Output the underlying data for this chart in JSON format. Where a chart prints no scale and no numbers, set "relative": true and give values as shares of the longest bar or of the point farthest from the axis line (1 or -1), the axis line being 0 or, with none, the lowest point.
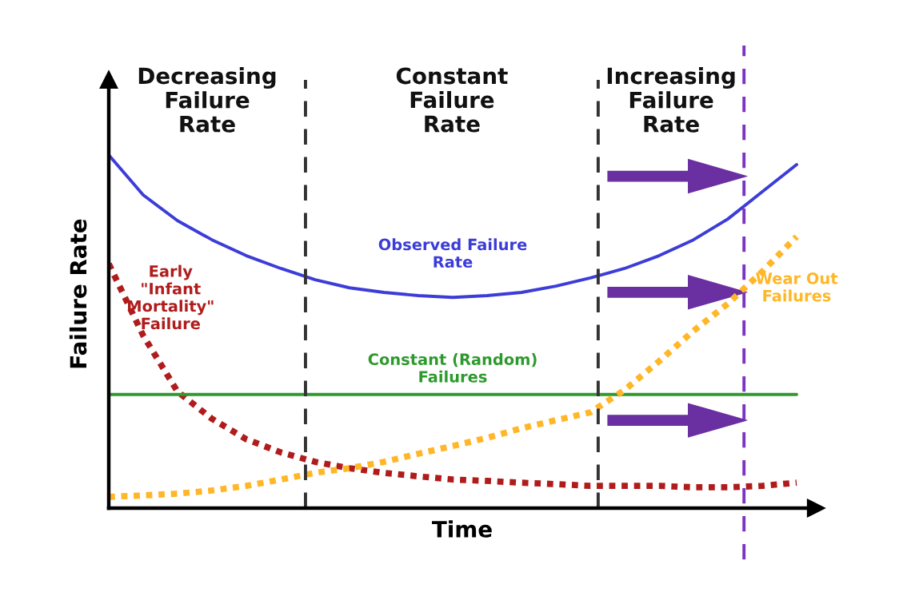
{
  "chart_data": {
    "type": "line",
    "relative": true,
    "xlabel": "Time",
    "ylabel": "Failure Rate",
    "categories": [
      null,
      null,
      null,
      null,
      null,
      null,
      null,
      null,
      null,
      null,
      null,
      null,
      null,
      null,
      null,
      null,
      null,
      null,
      null,
      null,
      null
    ],
    "series": [
      {
        "name": "Observed Failure\nRate",
        "color": "#3c3cd8",
        "line_style": "solid",
        "values": [
          1.0,
          0.887,
          0.814,
          0.76,
          0.715,
          0.679,
          0.647,
          0.624,
          0.611,
          0.602,
          0.597,
          0.602,
          0.611,
          0.629,
          0.652,
          0.679,
          0.715,
          0.76,
          0.819,
          0.896,
          0.973
        ]
      },
      {
        "name": "Early\n\"Infant\nMortality\"\nFailure",
        "color": "#b01c1c",
        "line_style": "dotted",
        "values": [
          0.692,
          0.489,
          0.33,
          0.253,
          0.195,
          0.158,
          0.131,
          0.113,
          0.1,
          0.09,
          0.081,
          0.077,
          0.072,
          0.068,
          0.063,
          0.063,
          0.063,
          0.059,
          0.059,
          0.063,
          0.072
        ]
      },
      {
        "name": "Constant (Random)\nFailures",
        "color": "#2e9a2e",
        "line_style": "solid",
        "values": [
          0.322,
          0.322,
          0.322,
          0.322,
          0.322,
          0.322,
          0.322,
          0.322,
          0.322,
          0.322,
          0.322,
          0.322,
          0.322,
          0.322,
          0.322,
          0.322,
          0.322,
          0.322,
          0.322,
          0.322,
          0.322
        ]
      },
      {
        "name": "Wear Out\nFailures",
        "color": "#ffb627",
        "line_style": "dotted",
        "values": [
          0.032,
          0.036,
          0.041,
          0.05,
          0.063,
          0.081,
          0.1,
          0.113,
          0.131,
          0.154,
          0.176,
          0.199,
          0.226,
          0.249,
          0.271,
          0.335,
          0.416,
          0.502,
          0.579,
          0.67,
          0.769
        ]
      }
    ],
    "annotations": [
      "Decreasing\nFailure\nRate",
      "Constant\nFailure\nRate",
      "Increasing\nFailure\nRate"
    ]
  }
}
